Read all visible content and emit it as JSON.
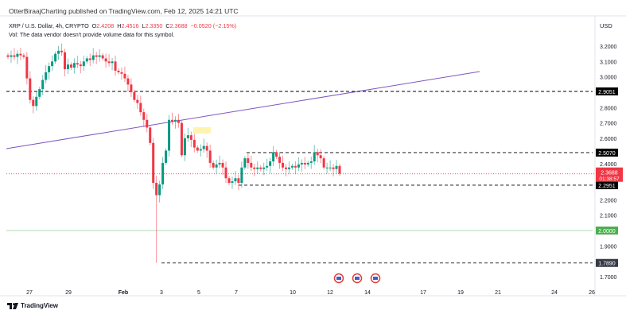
{
  "header": {
    "published": "OtterBiraajCharting published on TradingView.com, Feb 12, 2025 14:21 UTC",
    "symbol": "XRP / U.S. Dollar, 4h, CRYPTO",
    "o_label": "O",
    "o": "2.4208",
    "h_label": "H",
    "h": "2.4516",
    "l_label": "L",
    "l": "2.3350",
    "c_label": "C",
    "c": "2.3688",
    "change": "−0.0520 (−2.15%)",
    "volume_note": "Vol: The data vendor doesn't provide volume data for this symbol.",
    "currency": "USD"
  },
  "colors": {
    "up": "#089981",
    "down": "#f23645",
    "trendline": "#7e57c2",
    "support_green": "#4caf50",
    "highlight": "#fff3b0"
  },
  "chart_data": {
    "type": "candlestick",
    "ylim": [
      1.7,
      3.2
    ],
    "y_ticks": [
      "3.2000",
      "3.1000",
      "3.0000",
      "2.8000",
      "2.7000",
      "2.6000",
      "2.4000",
      "2.2000",
      "2.1000",
      "1.9000",
      "1.7000"
    ],
    "x_ticks": [
      "27",
      "29",
      "Feb",
      "3",
      "5",
      "7",
      "10",
      "12",
      "14",
      "17",
      "19",
      "21",
      "24",
      "26"
    ],
    "closes": [
      3.13,
      3.14,
      3.13,
      3.15,
      3.14,
      3.13,
      2.99,
      2.85,
      2.81,
      2.87,
      2.92,
      2.98,
      3.03,
      3.07,
      3.1,
      3.15,
      3.17,
      3.16,
      3.05,
      3.08,
      3.06,
      3.09,
      3.08,
      3.07,
      3.1,
      3.12,
      3.11,
      3.14,
      3.13,
      3.14,
      3.12,
      3.1,
      3.09,
      3.1,
      3.04,
      3.03,
      3.02,
      2.99,
      2.95,
      2.9,
      2.85,
      2.83,
      2.77,
      2.72,
      2.67,
      2.57,
      2.31,
      2.23,
      2.3,
      2.44,
      2.52,
      2.72,
      2.71,
      2.72,
      2.7,
      2.49,
      2.6,
      2.62,
      2.59,
      2.54,
      2.52,
      2.53,
      2.55,
      2.52,
      2.44,
      2.41,
      2.43,
      2.44,
      2.41,
      2.34,
      2.31,
      2.32,
      2.34,
      2.31,
      2.41,
      2.47,
      2.44,
      2.41,
      2.4,
      2.41,
      2.4,
      2.41,
      2.42,
      2.45,
      2.51,
      2.48,
      2.44,
      2.41,
      2.4,
      2.41,
      2.42,
      2.41,
      2.43,
      2.44,
      2.43,
      2.44,
      2.45,
      2.51,
      2.49,
      2.47,
      2.41,
      2.41,
      2.41,
      2.4,
      2.42,
      2.37
    ],
    "low_extreme": 1.789,
    "levels": [
      {
        "label": "2.9051",
        "value": 2.9051,
        "style": "dashed",
        "color": "#000000"
      },
      {
        "label": "2.5070",
        "value": 2.507,
        "style": "dashed",
        "color": "#000000"
      },
      {
        "label": "2.2951",
        "value": 2.2951,
        "style": "dashed",
        "color": "#000000"
      },
      {
        "label": "2.0000",
        "value": 2.0,
        "style": "solid",
        "color": "#4caf50"
      },
      {
        "label": "1.7890",
        "value": 1.789,
        "style": "dashed",
        "color": "#363a45"
      }
    ],
    "last_price": {
      "label": "2.3688",
      "value": 2.3688,
      "countdown": "01:38:57"
    }
  },
  "footer": {
    "brand": "TradingView"
  }
}
